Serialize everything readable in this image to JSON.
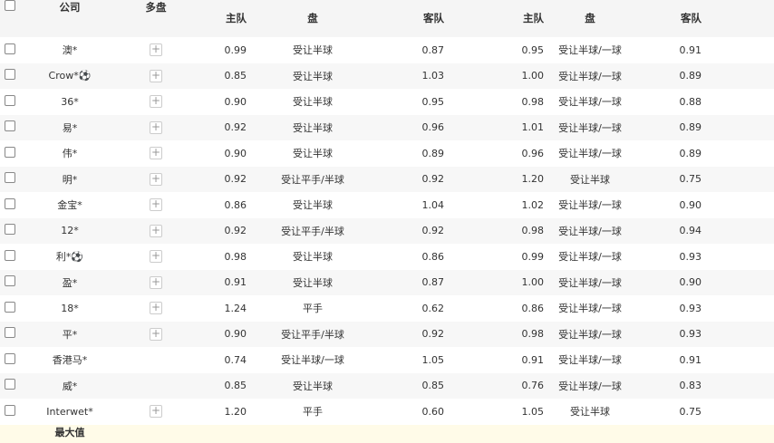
{
  "header": {
    "company": "公司",
    "multi": "多盘",
    "home1": "主队",
    "line1": "盘",
    "away1": "客队",
    "home2": "主队",
    "line2": "盘",
    "away2": "客队"
  },
  "rows": [
    {
      "company": "澳*",
      "multi": true,
      "h1": "0.99",
      "l1": "受让半球",
      "a1": "0.87",
      "h2": "0.95",
      "l2": "受让半球/一球",
      "a2": "0.91"
    },
    {
      "company": "Crow*⚽",
      "multi": true,
      "h1": "0.85",
      "l1": "受让半球",
      "a1": "1.03",
      "h2": "1.00",
      "l2": "受让半球/一球",
      "a2": "0.89"
    },
    {
      "company": "36*",
      "multi": true,
      "h1": "0.90",
      "l1": "受让半球",
      "a1": "0.95",
      "h2": "0.98",
      "l2": "受让半球/一球",
      "a2": "0.88"
    },
    {
      "company": "易*",
      "multi": true,
      "h1": "0.92",
      "l1": "受让半球",
      "a1": "0.96",
      "h2": "1.01",
      "l2": "受让半球/一球",
      "a2": "0.89"
    },
    {
      "company": "伟*",
      "multi": true,
      "h1": "0.90",
      "l1": "受让半球",
      "a1": "0.89",
      "h2": "0.96",
      "l2": "受让半球/一球",
      "a2": "0.89"
    },
    {
      "company": "明*",
      "multi": true,
      "h1": "0.92",
      "l1": "受让平手/半球",
      "a1": "0.92",
      "h2": "1.20",
      "l2": "受让半球",
      "a2": "0.75"
    },
    {
      "company": "金宝*",
      "multi": true,
      "h1": "0.86",
      "l1": "受让半球",
      "a1": "1.04",
      "h2": "1.02",
      "l2": "受让半球/一球",
      "a2": "0.90"
    },
    {
      "company": "12*",
      "multi": true,
      "h1": "0.92",
      "l1": "受让平手/半球",
      "a1": "0.92",
      "h2": "0.98",
      "l2": "受让半球/一球",
      "a2": "0.94"
    },
    {
      "company": "利*⚽",
      "multi": true,
      "h1": "0.98",
      "l1": "受让半球",
      "a1": "0.86",
      "h2": "0.99",
      "l2": "受让半球/一球",
      "a2": "0.93"
    },
    {
      "company": "盈*",
      "multi": true,
      "h1": "0.91",
      "l1": "受让半球",
      "a1": "0.87",
      "h2": "1.00",
      "l2": "受让半球/一球",
      "a2": "0.90"
    },
    {
      "company": "18*",
      "multi": true,
      "h1": "1.24",
      "l1": "平手",
      "a1": "0.62",
      "h2": "0.86",
      "l2": "受让半球/一球",
      "a2": "0.93"
    },
    {
      "company": "平*",
      "multi": true,
      "h1": "0.90",
      "l1": "受让平手/半球",
      "a1": "0.92",
      "h2": "0.98",
      "l2": "受让半球/一球",
      "a2": "0.93"
    },
    {
      "company": "香港马*",
      "multi": false,
      "h1": "0.74",
      "l1": "受让半球/一球",
      "a1": "1.05",
      "h2": "0.91",
      "l2": "受让半球/一球",
      "a2": "0.91"
    },
    {
      "company": "威*",
      "multi": false,
      "h1": "0.85",
      "l1": "受让半球",
      "a1": "0.85",
      "h2": "0.76",
      "l2": "受让半球/一球",
      "a2": "0.83"
    },
    {
      "company": "Interwet*",
      "multi": true,
      "h1": "1.20",
      "l1": "平手",
      "a1": "0.60",
      "h2": "1.05",
      "l2": "受让半球",
      "a2": "0.75"
    }
  ],
  "footer": {
    "label": "最大值"
  },
  "plus_icon": "+"
}
